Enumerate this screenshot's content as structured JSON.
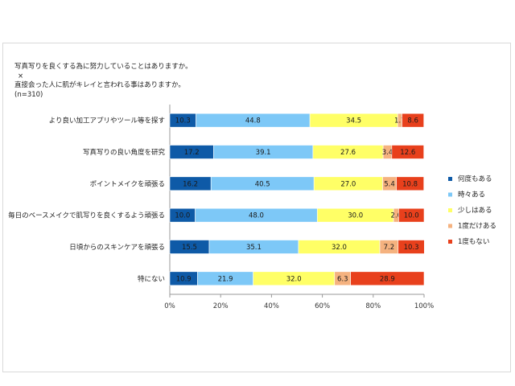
{
  "colors": {
    "何度もある": "#0e5aa7",
    "時々ある": "#7dc8f7",
    "少しはある": "#ffff66",
    "1度だけある": "#f5b27f",
    "1度もない": "#e8401c"
  },
  "chart_data": {
    "type": "bar",
    "orientation": "horizontal",
    "stacked": "percent",
    "title_lines": [
      "写真写りを良くする為に努力していることはありますか。",
      "×",
      "直接会った人に肌がキレイと言われる事はありますか。",
      "(n=310)"
    ],
    "categories": [
      "より良い加工アプリやツール等を探す",
      "写真写りの良い角度を研究",
      "ポイントメイクを頑張る",
      "毎日のベースメイクで肌写りを良くするよう頑張る",
      "日頃からのスキンケアを頑張る",
      "特にない"
    ],
    "series": [
      {
        "name": "何度もある",
        "values": [
          10.3,
          17.2,
          16.2,
          10.0,
          15.5,
          10.9
        ]
      },
      {
        "name": "時々ある",
        "values": [
          44.8,
          39.1,
          40.5,
          48.0,
          35.1,
          21.9
        ]
      },
      {
        "name": "少しはある",
        "values": [
          34.5,
          27.6,
          27.0,
          30.0,
          32.0,
          32.0
        ]
      },
      {
        "name": "1度だけある",
        "values": [
          1.7,
          3.4,
          5.4,
          2.0,
          7.2,
          6.3
        ]
      },
      {
        "name": "1度もない",
        "values": [
          8.6,
          12.6,
          10.8,
          10.0,
          10.3,
          28.9
        ]
      }
    ],
    "xlim": [
      0,
      100
    ],
    "xticks": [
      "0%",
      "20%",
      "40%",
      "60%",
      "80%",
      "100%"
    ],
    "grid": false,
    "legend": "right"
  }
}
